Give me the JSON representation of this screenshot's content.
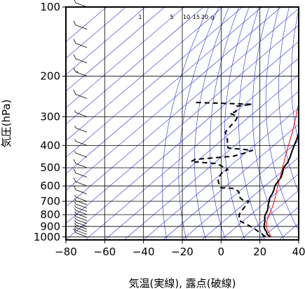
{
  "chart_data": {
    "type": "line",
    "subtype": "skew-t-log-p",
    "xlabel": "気温(実線), 露点(破線)",
    "ylabel": "気圧(hPa)",
    "xlim": [
      -80,
      40
    ],
    "ylim": [
      1030,
      100
    ],
    "y_scale": "log",
    "x_ticks": [
      "−80",
      "−60",
      "−40",
      "−20",
      "0",
      "20",
      "40"
    ],
    "y_ticks": [
      "100",
      "200",
      "300",
      "400",
      "500",
      "600",
      "700",
      "800",
      "900",
      "1000"
    ],
    "mixing_ratio_labels": [
      "1",
      "5",
      "10",
      "15",
      "20",
      "g"
    ],
    "colors": {
      "frame": "#000000",
      "isotherm": "#2b2bd9",
      "grid": "#000000",
      "parcel": "#ff0000",
      "profile": "#000000"
    },
    "series": [
      {
        "name": "気温",
        "style": "solid",
        "points": [
          [
            1000,
            23.5
          ],
          [
            975,
            20.5
          ],
          [
            950,
            18.5
          ],
          [
            925,
            16.0
          ],
          [
            900,
            14.0
          ],
          [
            875,
            12.5
          ],
          [
            850,
            11.0
          ],
          [
            825,
            9.0
          ],
          [
            800,
            7.5
          ],
          [
            775,
            6.5
          ],
          [
            750,
            5.0
          ],
          [
            725,
            3.0
          ],
          [
            700,
            1.5
          ],
          [
            675,
            -0.5
          ],
          [
            650,
            -1.5
          ],
          [
            625,
            -3.0
          ],
          [
            600,
            -5.0
          ],
          [
            575,
            -6.0
          ],
          [
            550,
            -7.0
          ],
          [
            525,
            -9.0
          ],
          [
            500,
            -11.5
          ],
          [
            475,
            -12.5
          ],
          [
            450,
            -14.5
          ],
          [
            425,
            -17.0
          ],
          [
            400,
            -19.5
          ],
          [
            375,
            -22.0
          ],
          [
            350,
            -25.0
          ],
          [
            325,
            -28.0
          ],
          [
            300,
            -31.5
          ],
          [
            275,
            -36.0
          ],
          [
            250,
            -40.5
          ],
          [
            225,
            -45.0
          ],
          [
            200,
            -51.0
          ],
          [
            175,
            -56.0
          ],
          [
            150,
            -60.0
          ],
          [
            125,
            -66.0
          ],
          [
            100,
            -74.5
          ]
        ]
      },
      {
        "name": "露点",
        "style": "dashed",
        "points": [
          [
            1000,
            21.0
          ],
          [
            975,
            18.0
          ],
          [
            950,
            14.5
          ],
          [
            925,
            11.0
          ],
          [
            900,
            7.0
          ],
          [
            850,
            -2.0
          ],
          [
            800,
            -6.0
          ],
          [
            750,
            -7.5
          ],
          [
            720,
            -8.5
          ],
          [
            700,
            -9.0
          ],
          [
            690,
            -13.0
          ],
          [
            680,
            -15.0
          ],
          [
            660,
            -18.0
          ],
          [
            640,
            -19.5
          ],
          [
            620,
            -23.0
          ],
          [
            615,
            -25.0
          ],
          [
            610,
            -32.0
          ],
          [
            580,
            -36.0
          ],
          [
            560,
            -38.5
          ],
          [
            520,
            -40.5
          ],
          [
            510,
            -39.0
          ],
          [
            500,
            -42.0
          ],
          [
            480,
            -48.0
          ],
          [
            470,
            -63.0
          ],
          [
            460,
            -62.0
          ],
          [
            450,
            -50.0
          ],
          [
            445,
            -44.0
          ],
          [
            430,
            -40.0
          ],
          [
            420,
            -38.0
          ],
          [
            410,
            -52.0
          ],
          [
            400,
            -54.0
          ],
          [
            380,
            -57.0
          ],
          [
            360,
            -61.0
          ],
          [
            350,
            -63.0
          ],
          [
            330,
            -64.0
          ],
          [
            310,
            -65.0
          ],
          [
            300,
            -66.0
          ],
          [
            290,
            -72.0
          ],
          [
            285,
            -70.0
          ],
          [
            270,
            -73.0
          ],
          [
            265,
            -66.0
          ],
          [
            260,
            -97.0
          ]
        ]
      },
      {
        "name": "parcel",
        "style": "solid-red",
        "points": [
          [
            1000,
            24.0
          ],
          [
            950,
            19.5
          ],
          [
            900,
            15.0
          ],
          [
            850,
            12.0
          ],
          [
            800,
            9.5
          ],
          [
            750,
            7.0
          ],
          [
            700,
            4.0
          ],
          [
            650,
            0.5
          ],
          [
            600,
            -3.5
          ],
          [
            550,
            -7.5
          ],
          [
            500,
            -12.0
          ],
          [
            450,
            -17.0
          ],
          [
            400,
            -22.5
          ],
          [
            350,
            -28.5
          ],
          [
            300,
            -36.0
          ],
          [
            250,
            -45.0
          ],
          [
            200,
            -55.0
          ],
          [
            150,
            -67.0
          ],
          [
            100,
            -84.0
          ]
        ]
      }
    ],
    "wind_barbs": [
      {
        "pressure": 1000,
        "speed_kt": 10
      },
      {
        "pressure": 975,
        "speed_kt": 5
      },
      {
        "pressure": 950,
        "speed_kt": 5
      },
      {
        "pressure": 925,
        "speed_kt": 5
      },
      {
        "pressure": 900,
        "speed_kt": 5
      },
      {
        "pressure": 875,
        "speed_kt": 5
      },
      {
        "pressure": 850,
        "speed_kt": 5
      },
      {
        "pressure": 825,
        "speed_kt": 5
      },
      {
        "pressure": 800,
        "speed_kt": 5
      },
      {
        "pressure": 775,
        "speed_kt": 5
      },
      {
        "pressure": 750,
        "speed_kt": 5
      },
      {
        "pressure": 725,
        "speed_kt": 5
      },
      {
        "pressure": 700,
        "speed_kt": 5
      },
      {
        "pressure": 650,
        "speed_kt": 10
      },
      {
        "pressure": 600,
        "speed_kt": 10
      },
      {
        "pressure": 550,
        "speed_kt": 10
      },
      {
        "pressure": 500,
        "speed_kt": 10
      },
      {
        "pressure": 450,
        "speed_kt": 5
      },
      {
        "pressure": 400,
        "speed_kt": 5
      },
      {
        "pressure": 350,
        "speed_kt": 5
      },
      {
        "pressure": 300,
        "speed_kt": 5
      },
      {
        "pressure": 250,
        "speed_kt": 10
      },
      {
        "pressure": 200,
        "speed_kt": 15
      },
      {
        "pressure": 175,
        "speed_kt": 10
      },
      {
        "pressure": 150,
        "speed_kt": 10
      },
      {
        "pressure": 125,
        "speed_kt": 10
      },
      {
        "pressure": 100,
        "speed_kt": 10
      }
    ]
  }
}
